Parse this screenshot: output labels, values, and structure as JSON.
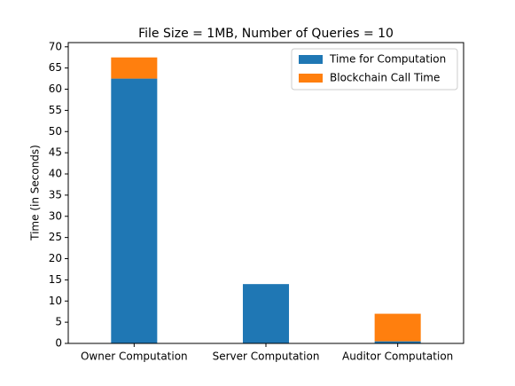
{
  "chart_data": {
    "type": "stacked-bar",
    "title": "File Size = 1MB, Number of Queries = 10",
    "y_label": "Time (in Seconds)",
    "categories": [
      "Owner Computation",
      "Server Computation",
      "Auditor Computation"
    ],
    "series": [
      {
        "name": "Time for Computation",
        "color": "#1f77b4",
        "values": [
          62.5,
          14,
          0.5
        ]
      },
      {
        "name": "Blockchain Call Time",
        "color": "#ff7f0e",
        "values": [
          5,
          0,
          6.5
        ]
      }
    ],
    "ylim": [
      0,
      71
    ],
    "yticks": [
      0,
      5,
      10,
      15,
      20,
      25,
      30,
      35,
      40,
      45,
      50,
      55,
      60,
      65,
      70
    ],
    "legend": "upper right"
  }
}
